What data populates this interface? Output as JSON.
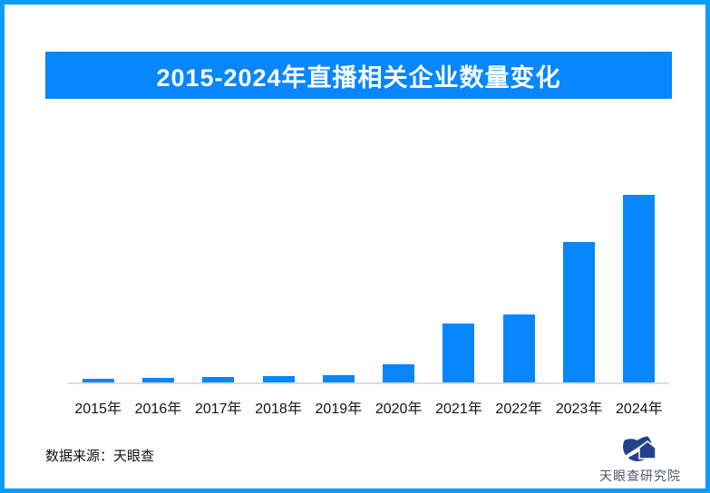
{
  "page": {
    "border_color": "#0A9CF7",
    "background_color": "#FFFFFF"
  },
  "header": {
    "title": "2015-2024年直播相关企业数量变化",
    "banner_color": "#0886FB",
    "title_color": "#FFFFFF"
  },
  "chart_data": {
    "type": "bar",
    "title": "2015-2024年直播相关企业数量变化",
    "categories": [
      "2015年",
      "2016年",
      "2017年",
      "2018年",
      "2019年",
      "2020年",
      "2021年",
      "2022年",
      "2023年",
      "2024年"
    ],
    "values": [
      4,
      5,
      6,
      7,
      8,
      20,
      65,
      75,
      155,
      207
    ],
    "value_axis_shown": false,
    "value_labels_shown": false,
    "grid": false,
    "legend": false,
    "xlabel": "",
    "ylabel": "",
    "ylim": [
      0,
      220
    ],
    "bar_color": "#0886FB",
    "axis_line_color": "#DCDCDC"
  },
  "footer": {
    "source_label": "数据来源：天眼查"
  },
  "logo": {
    "text": "天眼查研究院",
    "mark_color": "#24418B",
    "text_color": "#4D5866"
  }
}
